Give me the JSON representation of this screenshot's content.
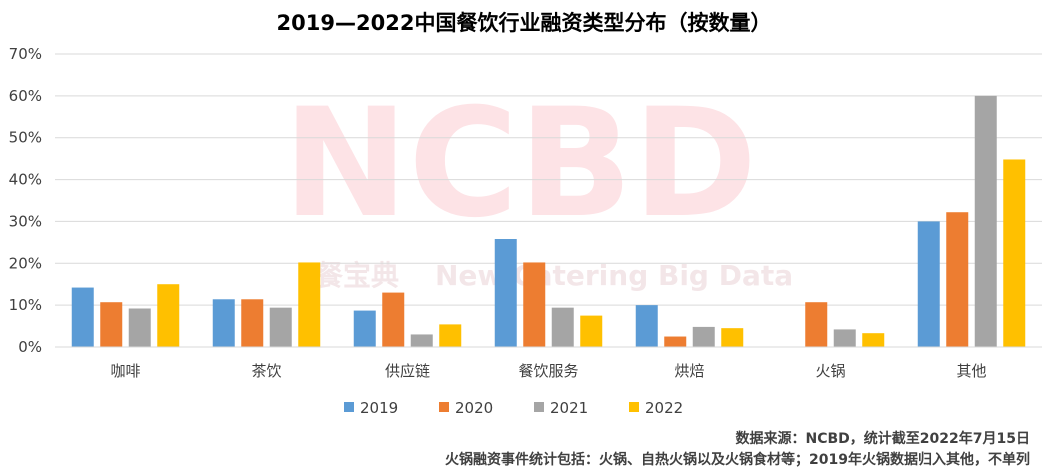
{
  "watermark": {
    "logo_text": "NCBD",
    "tagline_cn": "餐宝典",
    "tagline_en": "New Catering Big Data"
  },
  "chart_data": {
    "type": "bar",
    "title": "2019—2022中国餐饮行业融资类型分布（按数量）",
    "xlabel": "",
    "ylabel": "",
    "ylim": [
      0,
      70
    ],
    "yticks": [
      "0%",
      "10%",
      "20%",
      "30%",
      "40%",
      "50%",
      "60%",
      "70%"
    ],
    "grid": true,
    "legend_position": "bottom",
    "categories": [
      "咖啡",
      "茶饮",
      "供应链",
      "餐饮服务",
      "烘焙",
      "火锅",
      "其他"
    ],
    "series": [
      {
        "name": "2019",
        "color": "#5b9bd5",
        "values": [
          14.2,
          11.4,
          8.7,
          25.8,
          10.0,
          0,
          30.0
        ]
      },
      {
        "name": "2020",
        "color": "#ed7d31",
        "values": [
          10.7,
          11.4,
          13.0,
          20.2,
          2.5,
          10.7,
          32.2
        ]
      },
      {
        "name": "2021",
        "color": "#a5a5a5",
        "values": [
          9.2,
          9.4,
          3.0,
          9.4,
          4.8,
          4.2,
          60.0
        ]
      },
      {
        "name": "2022",
        "color": "#ffc000",
        "values": [
          15.0,
          20.2,
          5.4,
          7.5,
          4.5,
          3.3,
          44.8
        ]
      }
    ]
  },
  "source_note": "数据来源：NCBD，统计截至2022年7月15日",
  "footnote": "火锅融资事件统计包括：火锅、自热火锅以及火锅食材等；2019年火锅数据归入其他，不单列"
}
